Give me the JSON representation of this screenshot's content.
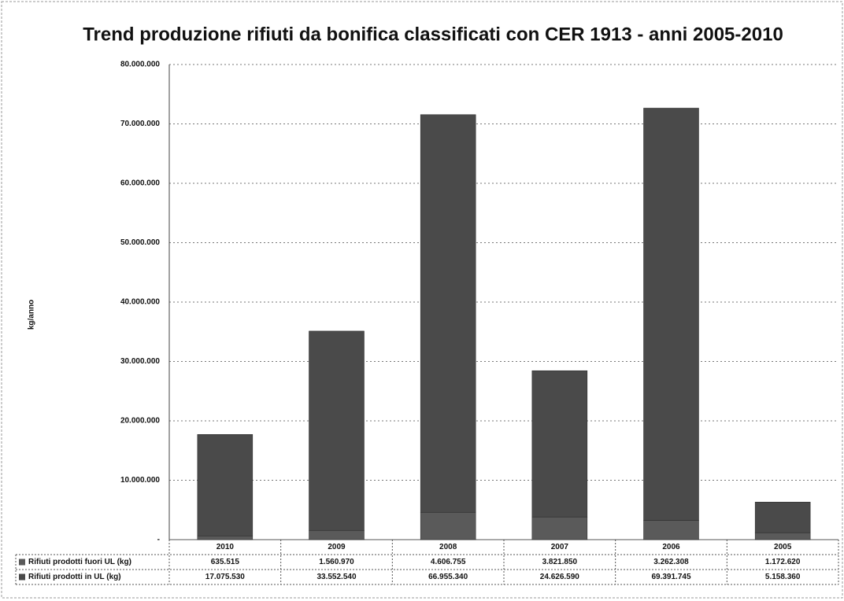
{
  "chart_data": {
    "type": "bar",
    "stacked": true,
    "title": "Trend produzione rifiuti da bonifica classificati con CER 1913 - anni 2005-2010",
    "y_label": "kg/anno",
    "categories": [
      "2010",
      "2009",
      "2008",
      "2007",
      "2006",
      "2005"
    ],
    "series": [
      {
        "name": "Rifiuti prodotti fuori UL (kg)",
        "color": "#5a5a5a",
        "values": [
          635515,
          1560970,
          4606755,
          3821850,
          3262308,
          1172620
        ],
        "value_labels": [
          "635.515",
          "1.560.970",
          "4.606.755",
          "3.821.850",
          "3.262.308",
          "1.172.620"
        ]
      },
      {
        "name": "Rifiuti prodotti in UL (kg)",
        "color": "#4a4a4a",
        "values": [
          17075530,
          33552540,
          66955340,
          24626590,
          69391745,
          5158360
        ],
        "value_labels": [
          "17.075.530",
          "33.552.540",
          "66.955.340",
          "24.626.590",
          "69.391.745",
          "5.158.360"
        ]
      }
    ],
    "ylim": [
      0,
      80000000
    ],
    "yticks": [
      {
        "value": 0,
        "label": "-"
      },
      {
        "value": 10000000,
        "label": "10.000.000"
      },
      {
        "value": 20000000,
        "label": "20.000.000"
      },
      {
        "value": 30000000,
        "label": "30.000.000"
      },
      {
        "value": 40000000,
        "label": "40.000.000"
      },
      {
        "value": 50000000,
        "label": "50.000.000"
      },
      {
        "value": 60000000,
        "label": "60.000.000"
      },
      {
        "value": 70000000,
        "label": "70.000.000"
      },
      {
        "value": 80000000,
        "label": "80.000.000"
      }
    ],
    "grid": true
  }
}
